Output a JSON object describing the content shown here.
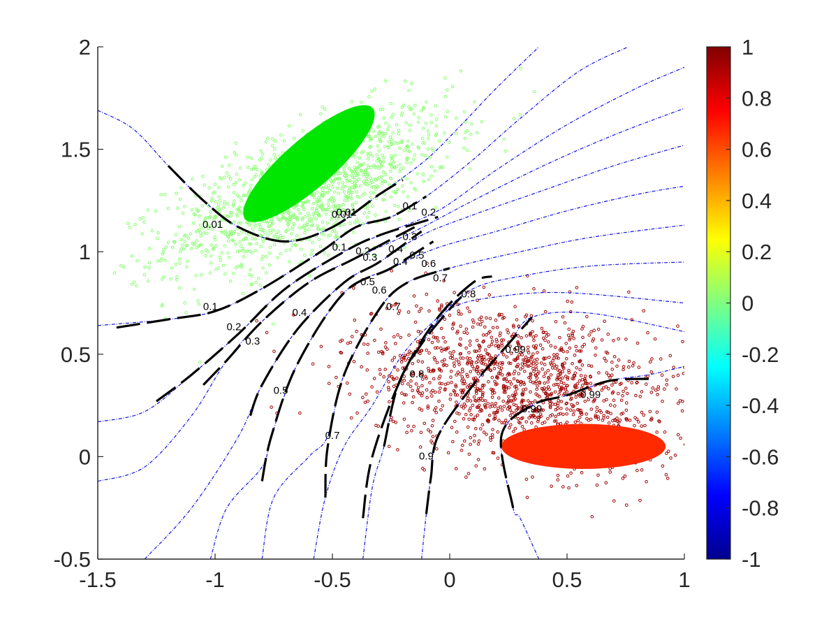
{
  "chart_data": {
    "type": "scatter",
    "title": "",
    "xlabel": "",
    "ylabel": "",
    "xlim": [
      -1.5,
      1
    ],
    "ylim": [
      -0.5,
      2
    ],
    "grid": false,
    "x_ticks": [
      -1.5,
      -1,
      -0.5,
      0,
      0.5,
      1
    ],
    "x_tick_labels": [
      "-1.5",
      "-1",
      "-0.5",
      "0",
      "0.5",
      "1"
    ],
    "y_ticks": [
      -0.5,
      0,
      0.5,
      1,
      1.5,
      2
    ],
    "y_tick_labels": [
      "-0.5",
      "0",
      "0.5",
      "1",
      "1.5",
      "2"
    ],
    "colorbar": {
      "colormap": "jet",
      "range": [
        -1,
        1
      ],
      "ticks": [
        1,
        0.8,
        0.6,
        0.4,
        0.2,
        0,
        -0.2,
        -0.4,
        -0.6,
        -0.8,
        -1
      ],
      "tick_labels": [
        "1",
        "0.8",
        "0.6",
        "0.4",
        "0.2",
        "0",
        "-0.2",
        "-0.4",
        "-0.6",
        "-0.8",
        "-1"
      ],
      "colors": [
        "#00008f",
        "#0000ff",
        "#0080ff",
        "#00ffff",
        "#80ff80",
        "#ffff00",
        "#ff8000",
        "#ff0000",
        "#800000"
      ]
    },
    "series": [
      {
        "kind": "scatter-cloud",
        "center": [
          -0.6,
          1.3
        ],
        "spread": [
          0.3,
          0.2
        ],
        "correlation": 0.65,
        "core_color": "#00e600",
        "point_color": "#88ff70",
        "core_ellipse": {
          "center": [
            -0.6,
            1.43
          ],
          "semi_axes": [
            0.36,
            0.12
          ],
          "angle_deg": 41
        }
      },
      {
        "kind": "scatter-cloud",
        "center": [
          0.3,
          0.35
        ],
        "spread": [
          0.35,
          0.2
        ],
        "correlation": -0.35,
        "core_color": "#ff2a00",
        "point_color": "#a00000",
        "core_ellipse": {
          "center": [
            0.57,
            0.05
          ],
          "semi_axes": [
            0.35,
            0.11
          ],
          "angle_deg": 0
        }
      }
    ],
    "contours": {
      "solid_levels": [
        "0.01",
        "0.1",
        "0.2",
        "0.3",
        "0.4",
        "0.5",
        "0.6",
        "0.7",
        "0.8",
        "0.9",
        "0.99"
      ],
      "solid_lines": [
        {
          "level": "0.01",
          "points": [
            [
              -1.2,
              1.42
            ],
            [
              -1.05,
              1.25
            ],
            [
              -0.9,
              1.12
            ],
            [
              -0.7,
              1.05
            ],
            [
              -0.5,
              1.12
            ],
            [
              -0.3,
              1.28
            ],
            [
              -0.2,
              1.35
            ]
          ]
        },
        {
          "level": "0.1",
          "points": [
            [
              -1.42,
              0.63
            ],
            [
              -1.2,
              0.67
            ],
            [
              -1.0,
              0.71
            ],
            [
              -0.8,
              0.82
            ],
            [
              -0.55,
              1.0
            ],
            [
              -0.4,
              1.12
            ],
            [
              -0.25,
              1.17
            ],
            [
              -0.1,
              1.27
            ]
          ]
        },
        {
          "level": "0.2",
          "points": [
            [
              -1.25,
              0.27
            ],
            [
              -1.1,
              0.4
            ],
            [
              -0.9,
              0.6
            ],
            [
              -0.7,
              0.82
            ],
            [
              -0.45,
              1.0
            ],
            [
              -0.3,
              1.08
            ],
            [
              -0.05,
              1.17
            ]
          ]
        },
        {
          "level": "0.3",
          "points": [
            [
              -1.05,
              0.35
            ],
            [
              -0.95,
              0.47
            ],
            [
              -0.8,
              0.66
            ],
            [
              -0.6,
              0.85
            ],
            [
              -0.4,
              0.97
            ],
            [
              -0.15,
              1.12
            ]
          ]
        },
        {
          "level": "0.4",
          "points": [
            [
              -0.85,
              0.2
            ],
            [
              -0.8,
              0.35
            ],
            [
              -0.65,
              0.62
            ],
            [
              -0.45,
              0.85
            ],
            [
              -0.3,
              0.95
            ],
            [
              -0.12,
              1.1
            ]
          ]
        },
        {
          "level": "0.5",
          "points": [
            [
              -0.8,
              -0.12
            ],
            [
              -0.76,
              0.1
            ],
            [
              -0.65,
              0.45
            ],
            [
              -0.45,
              0.8
            ],
            [
              -0.25,
              0.92
            ],
            [
              -0.07,
              1.05
            ]
          ]
        },
        {
          "level": "0.6",
          "points": [
            [
              -0.53,
              -0.2
            ],
            [
              -0.52,
              0.05
            ],
            [
              -0.45,
              0.4
            ],
            [
              -0.3,
              0.72
            ],
            [
              -0.18,
              0.85
            ],
            [
              0.0,
              0.92
            ]
          ]
        },
        {
          "level": "0.7",
          "points": [
            [
              -0.37,
              -0.3
            ],
            [
              -0.33,
              0.0
            ],
            [
              -0.2,
              0.4
            ],
            [
              -0.05,
              0.68
            ],
            [
              0.1,
              0.85
            ],
            [
              0.18,
              0.88
            ]
          ]
        },
        {
          "level": "0.8",
          "points": [
            [
              -0.28,
              0.05
            ],
            [
              -0.22,
              0.35
            ],
            [
              -0.12,
              0.55
            ],
            [
              0.0,
              0.72
            ],
            [
              0.05,
              0.78
            ]
          ]
        },
        {
          "level": "0.9",
          "points": [
            [
              -0.1,
              -0.28
            ],
            [
              -0.08,
              -0.1
            ],
            [
              -0.05,
              0.1
            ],
            [
              0.1,
              0.35
            ],
            [
              0.25,
              0.55
            ],
            [
              0.35,
              0.68
            ]
          ]
        },
        {
          "level": "0.99",
          "points": [
            [
              0.27,
              -0.25
            ],
            [
              0.22,
              0.1
            ],
            [
              0.35,
              0.25
            ],
            [
              0.5,
              0.3
            ],
            [
              0.68,
              0.37
            ],
            [
              0.85,
              0.38
            ]
          ]
        }
      ],
      "dashed_lines": [
        [
          [
            -1.5,
            1.69
          ],
          [
            -1.35,
            1.6
          ],
          [
            -1.2,
            1.42
          ],
          [
            -1.05,
            1.25
          ],
          [
            -0.9,
            1.12
          ],
          [
            -0.7,
            1.05
          ],
          [
            -0.5,
            1.12
          ],
          [
            -0.3,
            1.28
          ],
          [
            -0.1,
            1.45
          ],
          [
            0.05,
            1.62
          ],
          [
            0.2,
            1.8
          ],
          [
            0.38,
            2.0
          ]
        ],
        [
          [
            -1.5,
            0.64
          ],
          [
            -1.2,
            0.67
          ],
          [
            -1.0,
            0.71
          ],
          [
            -0.8,
            0.82
          ],
          [
            -0.55,
            1.0
          ],
          [
            -0.4,
            1.12
          ],
          [
            -0.25,
            1.17
          ],
          [
            -0.1,
            1.27
          ],
          [
            0.1,
            1.45
          ],
          [
            0.3,
            1.65
          ],
          [
            0.55,
            1.88
          ],
          [
            0.76,
            2.0
          ]
        ],
        [
          [
            -1.5,
            0.17
          ],
          [
            -1.3,
            0.22
          ],
          [
            -1.1,
            0.4
          ],
          [
            -0.9,
            0.6
          ],
          [
            -0.7,
            0.82
          ],
          [
            -0.45,
            1.0
          ],
          [
            -0.3,
            1.08
          ],
          [
            -0.05,
            1.2
          ],
          [
            0.2,
            1.4
          ],
          [
            0.5,
            1.62
          ],
          [
            0.8,
            1.8
          ],
          [
            1.0,
            1.9
          ]
        ],
        [
          [
            -1.5,
            -0.12
          ],
          [
            -1.3,
            -0.05
          ],
          [
            -1.1,
            0.2
          ],
          [
            -0.95,
            0.47
          ],
          [
            -0.8,
            0.66
          ],
          [
            -0.6,
            0.85
          ],
          [
            -0.4,
            0.97
          ],
          [
            -0.15,
            1.1
          ],
          [
            0.1,
            1.25
          ],
          [
            0.4,
            1.42
          ],
          [
            0.7,
            1.57
          ],
          [
            1.0,
            1.7
          ]
        ],
        [
          [
            -1.3,
            -0.5
          ],
          [
            -1.1,
            -0.25
          ],
          [
            -0.9,
            0.1
          ],
          [
            -0.8,
            0.35
          ],
          [
            -0.65,
            0.62
          ],
          [
            -0.45,
            0.85
          ],
          [
            -0.3,
            0.95
          ],
          [
            -0.12,
            1.08
          ],
          [
            0.1,
            1.18
          ],
          [
            0.4,
            1.3
          ],
          [
            0.7,
            1.42
          ],
          [
            1.0,
            1.52
          ]
        ],
        [
          [
            -1.02,
            -0.5
          ],
          [
            -0.95,
            -0.25
          ],
          [
            -0.8,
            -0.05
          ],
          [
            -0.76,
            0.1
          ],
          [
            -0.65,
            0.45
          ],
          [
            -0.45,
            0.8
          ],
          [
            -0.25,
            0.92
          ],
          [
            -0.05,
            1.02
          ],
          [
            0.2,
            1.1
          ],
          [
            0.5,
            1.2
          ],
          [
            0.8,
            1.28
          ],
          [
            1.0,
            1.32
          ]
        ],
        [
          [
            -0.8,
            -0.5
          ],
          [
            -0.75,
            -0.2
          ],
          [
            -0.6,
            0.0
          ],
          [
            -0.52,
            0.1
          ],
          [
            -0.45,
            0.4
          ],
          [
            -0.3,
            0.72
          ],
          [
            -0.18,
            0.85
          ],
          [
            0.0,
            0.92
          ],
          [
            0.3,
            1.0
          ],
          [
            0.6,
            1.07
          ],
          [
            1.0,
            1.13
          ]
        ],
        [
          [
            -0.58,
            -0.5
          ],
          [
            -0.53,
            -0.2
          ],
          [
            -0.45,
            0.05
          ],
          [
            -0.33,
            0.25
          ],
          [
            -0.2,
            0.5
          ],
          [
            -0.05,
            0.68
          ],
          [
            0.1,
            0.82
          ],
          [
            0.3,
            0.88
          ],
          [
            0.6,
            0.93
          ],
          [
            1.0,
            0.95
          ]
        ],
        [
          [
            -0.37,
            -0.5
          ],
          [
            -0.33,
            -0.15
          ],
          [
            -0.28,
            0.05
          ],
          [
            -0.22,
            0.35
          ],
          [
            -0.12,
            0.55
          ],
          [
            0.0,
            0.72
          ],
          [
            0.2,
            0.78
          ],
          [
            0.5,
            0.8
          ],
          [
            1.0,
            0.75
          ]
        ],
        [
          [
            -0.12,
            -0.5
          ],
          [
            -0.1,
            -0.28
          ],
          [
            -0.08,
            -0.1
          ],
          [
            -0.05,
            0.1
          ],
          [
            0.1,
            0.35
          ],
          [
            0.25,
            0.55
          ],
          [
            0.35,
            0.68
          ],
          [
            0.6,
            0.7
          ],
          [
            1.0,
            0.61
          ]
        ],
        [
          [
            0.38,
            -0.5
          ],
          [
            0.3,
            -0.3
          ],
          [
            0.27,
            -0.25
          ],
          [
            0.22,
            0.1
          ],
          [
            0.35,
            0.25
          ],
          [
            0.5,
            0.3
          ],
          [
            0.68,
            0.37
          ],
          [
            0.85,
            0.4
          ],
          [
            1.0,
            0.44
          ]
        ]
      ],
      "labels": [
        {
          "text": "0.01",
          "x": -1.01,
          "y": 1.13
        },
        {
          "text": "0.01",
          "x": -0.46,
          "y": 1.18
        },
        {
          "text": "0.01",
          "x": -0.44,
          "y": 1.19
        },
        {
          "text": "0.1",
          "x": -1.02,
          "y": 0.73
        },
        {
          "text": "0.1",
          "x": -0.47,
          "y": 1.02
        },
        {
          "text": "0.1",
          "x": -0.17,
          "y": 1.22
        },
        {
          "text": "0.2",
          "x": -0.92,
          "y": 0.63
        },
        {
          "text": "0.2",
          "x": -0.37,
          "y": 1.0
        },
        {
          "text": "0.2",
          "x": -0.09,
          "y": 1.19
        },
        {
          "text": "0.3",
          "x": -0.84,
          "y": 0.56
        },
        {
          "text": "0.3",
          "x": -0.34,
          "y": 0.97
        },
        {
          "text": "0.3",
          "x": -0.17,
          "y": 1.07
        },
        {
          "text": "0.4",
          "x": -0.64,
          "y": 0.7
        },
        {
          "text": "0.4",
          "x": -0.21,
          "y": 0.95
        },
        {
          "text": "0.4",
          "x": -0.23,
          "y": 1.01
        },
        {
          "text": "0.5",
          "x": -0.72,
          "y": 0.32
        },
        {
          "text": "0.5",
          "x": -0.35,
          "y": 0.85
        },
        {
          "text": "0.5",
          "x": -0.14,
          "y": 0.98
        },
        {
          "text": "0.6",
          "x": -0.3,
          "y": 0.81
        },
        {
          "text": "0.6",
          "x": -0.09,
          "y": 0.94
        },
        {
          "text": "0.7",
          "x": -0.5,
          "y": 0.1
        },
        {
          "text": "0.7",
          "x": -0.24,
          "y": 0.73
        },
        {
          "text": "0.7",
          "x": -0.04,
          "y": 0.87
        },
        {
          "text": "0.8",
          "x": -0.14,
          "y": 0.4
        },
        {
          "text": "0.8",
          "x": 0.08,
          "y": 0.79
        },
        {
          "text": "0.9",
          "x": -0.1,
          "y": 0.0
        },
        {
          "text": "0.99",
          "x": 0.28,
          "y": 0.52
        },
        {
          "text": "0.99",
          "x": 0.35,
          "y": 0.23
        },
        {
          "text": "0.99",
          "x": 0.6,
          "y": 0.3
        }
      ]
    }
  }
}
